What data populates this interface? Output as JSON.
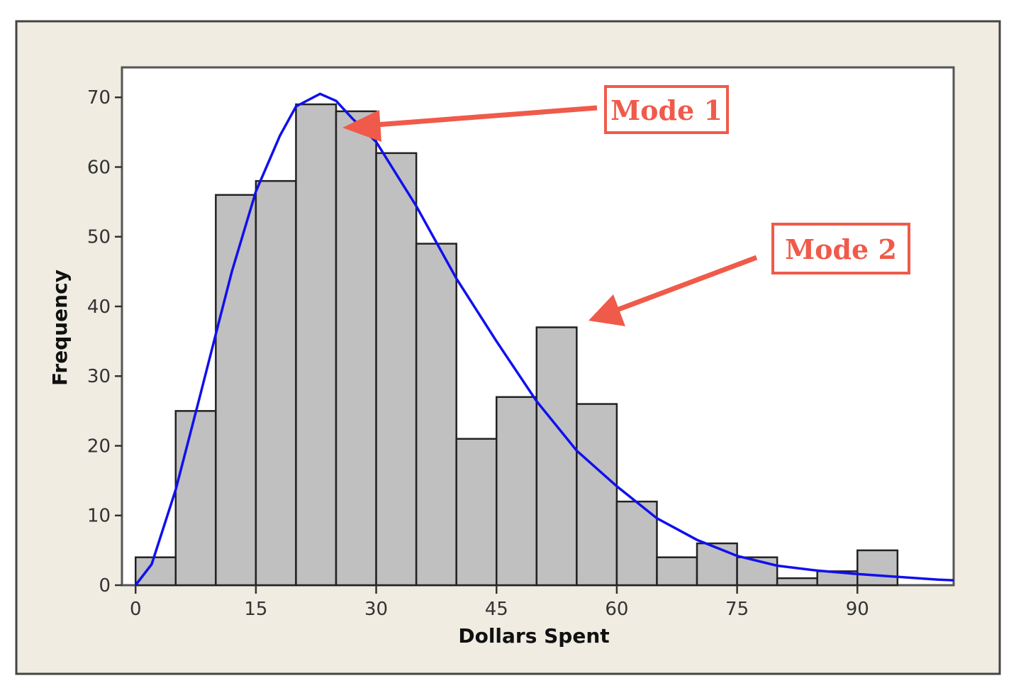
{
  "chart_data": {
    "type": "bar",
    "subtype": "histogram-with-fitted-curve",
    "title": "",
    "xlabel": "Dollars Spent",
    "ylabel": "Frequency",
    "xlim": [
      -1.7,
      102
    ],
    "ylim": [
      0,
      74.3
    ],
    "xticks": [
      0,
      15,
      30,
      45,
      60,
      75,
      90
    ],
    "yticks": [
      0,
      10,
      20,
      30,
      40,
      50,
      60,
      70
    ],
    "grid": false,
    "bin_width": 5,
    "bin_starts": [
      0,
      5,
      10,
      15,
      20,
      25,
      30,
      35,
      40,
      45,
      50,
      55,
      60,
      65,
      70,
      75,
      80,
      85,
      90
    ],
    "values": [
      4,
      25,
      56,
      58,
      69,
      68,
      62,
      49,
      21,
      27,
      37,
      26,
      12,
      4,
      6,
      4,
      1,
      2,
      5
    ],
    "fitted_curve": {
      "x": [
        0,
        2,
        5,
        8,
        10,
        12,
        15,
        18,
        20,
        23,
        25,
        27,
        30,
        35,
        40,
        45,
        50,
        55,
        60,
        65,
        70,
        75,
        80,
        85,
        90,
        95,
        100,
        102
      ],
      "y": [
        0,
        3,
        13.7,
        27,
        36,
        45,
        56.5,
        64.5,
        68.7,
        70.5,
        69.5,
        67,
        63.6,
        54.4,
        44,
        35,
        26.4,
        19.3,
        14.2,
        9.6,
        6.5,
        4.2,
        2.8,
        2.1,
        1.6,
        1.2,
        0.8,
        0.7
      ]
    },
    "annotations": [
      {
        "text": "Mode 1",
        "points_to": {
          "x": 26,
          "y": 66
        }
      },
      {
        "text": "Mode 2",
        "points_to": {
          "x": 57,
          "y": 38
        }
      }
    ],
    "colors": {
      "bar_fill": "#c0c0c0",
      "bar_stroke": "#222222",
      "curve": "#1010ee",
      "annotation": "#f05a4a",
      "panel_background": "#f0ece2",
      "plot_background": "#ffffff"
    }
  }
}
